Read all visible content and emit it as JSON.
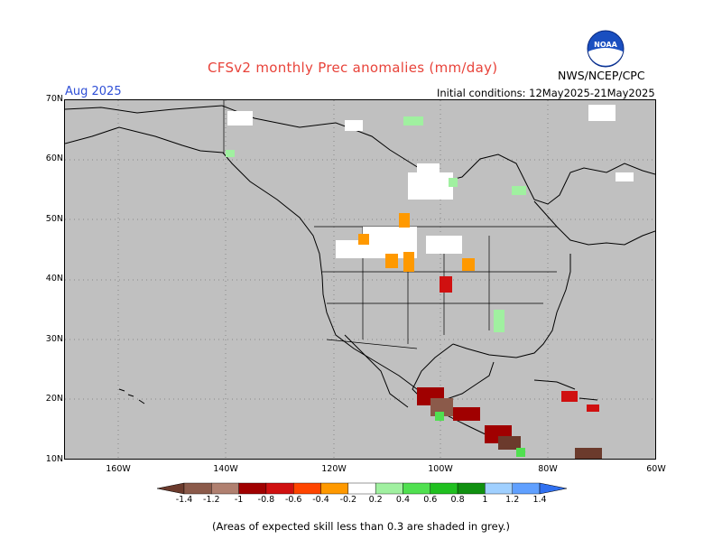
{
  "header": {
    "title": "CFSv2 monthly Prec anomalies (mm/day)",
    "period": "Aug 2025",
    "initial_conditions": "Initial conditions: 12May2025-21May2025",
    "agency": "NWS/NCEP/CPC",
    "logo_text": "NOAA"
  },
  "map": {
    "lat_labels": [
      "70N",
      "60N",
      "50N",
      "40N",
      "30N",
      "20N",
      "10N"
    ],
    "lon_labels": [
      "160W",
      "140W",
      "120W",
      "100W",
      "80W",
      "60W"
    ],
    "background_color": "#c0c0c0",
    "land_outline_color": "#000000"
  },
  "colorbar": {
    "tick_labels": [
      "-1.4",
      "-1.2",
      "-1",
      "-0.8",
      "-0.6",
      "-0.4",
      "-0.2",
      "0.2",
      "0.4",
      "0.6",
      "0.8",
      "1",
      "1.2",
      "1.4"
    ],
    "colors": [
      "#6b3a2c",
      "#8b5a4a",
      "#b08070",
      "#a00000",
      "#d01010",
      "#ff4500",
      "#ff9900",
      "#ffffff",
      "#a0f0a0",
      "#50e050",
      "#20c020",
      "#109010",
      "#a0d0ff",
      "#60a0ff",
      "#3070f0"
    ]
  },
  "footnote": "(Areas of expected skill less than 0.3 are shaded in grey.)"
}
